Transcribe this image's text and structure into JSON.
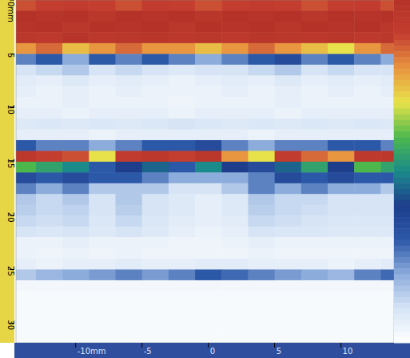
{
  "chart_data": {
    "type": "heatmap",
    "x": [
      -14,
      -12,
      -10,
      -8,
      -6,
      -4,
      -2,
      0,
      2,
      4,
      6,
      8,
      10,
      12,
      14
    ],
    "y": [
      0.5,
      1.5,
      2.5,
      3.5,
      4.5,
      5.5,
      6.5,
      7.5,
      8.5,
      9.5,
      10.5,
      11.5,
      12.5,
      13.5,
      14.5,
      15.5,
      16.5,
      17.5,
      18.5,
      19.5,
      20.5,
      21.5,
      22.5,
      23.5,
      24.5,
      25.5,
      26.5,
      27.5,
      28.5,
      29.5,
      30.5,
      31.5
    ],
    "values": [
      [
        88,
        90,
        92,
        90,
        88,
        92,
        90,
        88,
        90,
        92,
        90,
        88,
        90,
        92,
        88
      ],
      [
        100,
        98,
        100,
        96,
        100,
        98,
        100,
        97,
        100,
        98,
        100,
        96,
        100,
        98,
        100
      ],
      [
        98,
        100,
        96,
        100,
        98,
        100,
        96,
        100,
        98,
        100,
        97,
        100,
        98,
        100,
        96
      ],
      [
        96,
        94,
        98,
        95,
        96,
        97,
        95,
        96,
        94,
        97,
        96,
        95,
        97,
        94,
        96
      ],
      [
        80,
        85,
        75,
        80,
        85,
        80,
        80,
        75,
        80,
        85,
        80,
        75,
        70,
        80,
        85
      ],
      [
        25,
        30,
        20,
        30,
        25,
        30,
        25,
        20,
        25,
        30,
        35,
        25,
        30,
        25,
        20
      ],
      [
        10,
        12,
        15,
        10,
        12,
        10,
        8,
        10,
        10,
        12,
        15,
        10,
        12,
        10,
        10
      ],
      [
        7,
        6,
        8,
        6,
        7,
        6,
        5,
        6,
        7,
        6,
        8,
        6,
        7,
        6,
        7
      ],
      [
        6,
        5,
        6,
        5,
        6,
        5,
        5,
        5,
        6,
        5,
        6,
        5,
        6,
        5,
        6
      ],
      [
        5,
        5,
        6,
        5,
        5,
        5,
        4,
        5,
        5,
        5,
        6,
        5,
        5,
        5,
        5
      ],
      [
        6,
        6,
        5,
        6,
        6,
        6,
        5,
        6,
        6,
        6,
        5,
        6,
        6,
        6,
        6
      ],
      [
        8,
        9,
        8,
        9,
        8,
        9,
        10,
        9,
        8,
        9,
        8,
        9,
        8,
        9,
        8
      ],
      [
        6,
        6,
        6,
        5,
        6,
        6,
        6,
        6,
        6,
        5,
        6,
        6,
        6,
        6,
        6
      ],
      [
        30,
        25,
        25,
        20,
        25,
        30,
        30,
        35,
        25,
        20,
        25,
        25,
        30,
        30,
        25
      ],
      [
        95,
        90,
        88,
        70,
        92,
        95,
        90,
        96,
        80,
        70,
        92,
        85,
        80,
        94,
        95
      ],
      [
        60,
        55,
        50,
        30,
        40,
        45,
        30,
        50,
        40,
        35,
        45,
        55,
        40,
        60,
        55
      ],
      [
        35,
        30,
        35,
        30,
        30,
        25,
        20,
        20,
        20,
        25,
        35,
        30,
        35,
        30,
        30
      ],
      [
        25,
        20,
        25,
        15,
        15,
        15,
        10,
        10,
        15,
        25,
        20,
        25,
        20,
        20,
        15
      ],
      [
        15,
        12,
        15,
        10,
        15,
        10,
        8,
        6,
        8,
        15,
        12,
        12,
        10,
        10,
        10
      ],
      [
        14,
        12,
        13,
        10,
        14,
        10,
        8,
        6,
        8,
        14,
        12,
        11,
        10,
        10,
        10
      ],
      [
        12,
        11,
        12,
        9,
        12,
        9,
        7,
        6,
        7,
        12,
        11,
        10,
        9,
        9,
        9
      ],
      [
        10,
        9,
        10,
        8,
        10,
        8,
        6,
        5,
        6,
        10,
        9,
        9,
        8,
        8,
        8
      ],
      [
        5,
        5,
        6,
        5,
        5,
        5,
        4,
        4,
        5,
        6,
        5,
        5,
        5,
        5,
        5
      ],
      [
        5,
        4,
        5,
        4,
        5,
        4,
        4,
        4,
        4,
        5,
        4,
        4,
        4,
        4,
        4
      ],
      [
        6,
        5,
        6,
        6,
        7,
        6,
        6,
        7,
        7,
        6,
        6,
        6,
        5,
        6,
        7
      ],
      [
        15,
        18,
        20,
        22,
        25,
        22,
        25,
        30,
        28,
        25,
        22,
        20,
        18,
        25,
        28
      ],
      [
        3,
        3,
        3,
        3,
        3,
        3,
        3,
        3,
        3,
        3,
        3,
        3,
        3,
        3,
        3
      ],
      [
        2,
        2,
        2,
        2,
        2,
        2,
        2,
        2,
        2,
        2,
        2,
        2,
        2,
        2,
        2
      ],
      [
        2,
        2,
        2,
        2,
        2,
        2,
        2,
        2,
        2,
        2,
        2,
        2,
        2,
        2,
        2
      ],
      [
        2,
        2,
        2,
        2,
        2,
        2,
        2,
        2,
        2,
        2,
        2,
        2,
        2,
        2,
        2
      ],
      [
        2,
        2,
        2,
        2,
        2,
        2,
        2,
        2,
        2,
        2,
        2,
        2,
        2,
        2,
        2
      ],
      [
        2,
        2,
        2,
        2,
        2,
        2,
        2,
        2,
        2,
        2,
        2,
        2,
        2,
        2,
        2
      ]
    ],
    "xlim": [
      -14.5,
      14
    ],
    "ylim": [
      0,
      31.8
    ],
    "xticks": [
      {
        "value": -10,
        "label": "-10mm"
      },
      -5,
      0,
      5,
      10
    ],
    "yticks": [
      {
        "value": 0,
        "label": "0mm"
      },
      5,
      10,
      15,
      20,
      25,
      30
    ],
    "colorbar": {
      "range": [
        0,
        100
      ]
    }
  }
}
